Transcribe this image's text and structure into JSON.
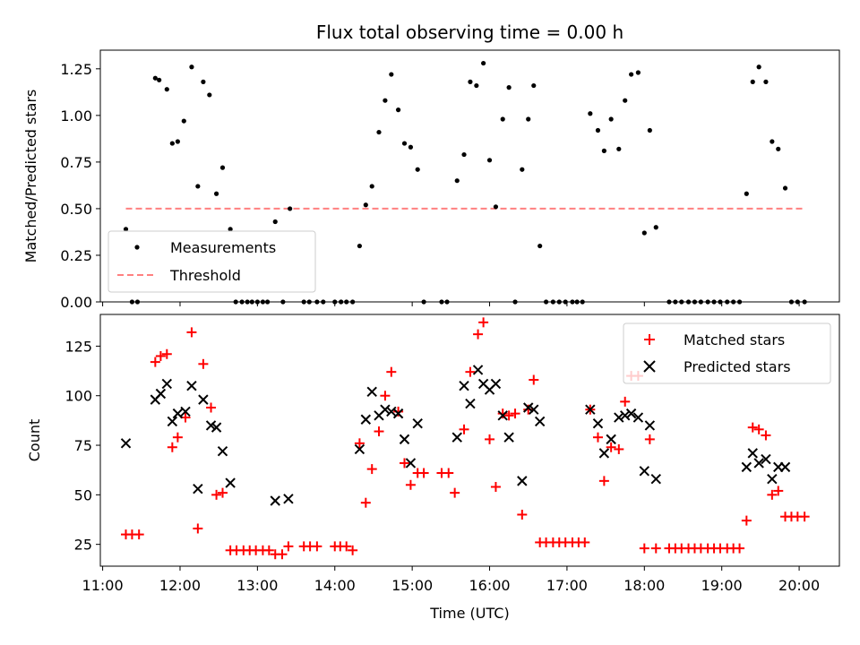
{
  "colors": {
    "measurement": "#000000",
    "threshold": "#ff8080",
    "matched": "#ff0000",
    "predicted": "#000000"
  },
  "chart_data": [
    {
      "type": "scatter",
      "title": "Flux total observing time = 0.00 h",
      "xlabel": "",
      "ylabel": "Matched/Predicted stars",
      "x_unit": "hours UTC",
      "xlim": [
        10.97,
        20.52
      ],
      "ylim": [
        0,
        1.35
      ],
      "yticks": [
        "0.00",
        "0.25",
        "0.50",
        "0.75",
        "1.00",
        "1.25"
      ],
      "legend": {
        "placement": "lower-left",
        "entries": [
          "Measurements",
          "Threshold"
        ]
      },
      "threshold": {
        "name": "Threshold",
        "y": 0.5,
        "x_start": 11.3,
        "x_end": 20.07,
        "style": "dashed"
      },
      "series": [
        {
          "name": "Measurements",
          "marker": "dot",
          "points": [
            [
              11.3,
              0.39
            ],
            [
              11.38,
              0.0
            ],
            [
              11.45,
              0.0
            ],
            [
              11.68,
              1.2
            ],
            [
              11.73,
              1.19
            ],
            [
              11.83,
              1.14
            ],
            [
              11.9,
              0.85
            ],
            [
              11.97,
              0.86
            ],
            [
              12.05,
              0.97
            ],
            [
              12.15,
              1.26
            ],
            [
              12.23,
              0.62
            ],
            [
              12.3,
              1.18
            ],
            [
              12.38,
              1.11
            ],
            [
              12.47,
              0.58
            ],
            [
              12.55,
              0.72
            ],
            [
              12.65,
              0.39
            ],
            [
              12.72,
              0.0
            ],
            [
              12.8,
              0.0
            ],
            [
              12.87,
              0.0
            ],
            [
              12.93,
              0.0
            ],
            [
              13.0,
              0.0
            ],
            [
              13.07,
              0.0
            ],
            [
              13.13,
              0.0
            ],
            [
              13.23,
              0.43
            ],
            [
              13.33,
              0.0
            ],
            [
              13.42,
              0.5
            ],
            [
              13.6,
              0.0
            ],
            [
              13.67,
              0.0
            ],
            [
              13.77,
              0.0
            ],
            [
              13.85,
              0.0
            ],
            [
              14.0,
              0.0
            ],
            [
              14.08,
              0.0
            ],
            [
              14.15,
              0.0
            ],
            [
              14.23,
              0.0
            ],
            [
              14.32,
              0.3
            ],
            [
              14.4,
              0.52
            ],
            [
              14.48,
              0.62
            ],
            [
              14.57,
              0.91
            ],
            [
              14.65,
              1.08
            ],
            [
              14.73,
              1.22
            ],
            [
              14.82,
              1.03
            ],
            [
              14.9,
              0.85
            ],
            [
              14.98,
              0.83
            ],
            [
              15.07,
              0.71
            ],
            [
              15.15,
              0.0
            ],
            [
              15.38,
              0.0
            ],
            [
              15.45,
              0.0
            ],
            [
              15.58,
              0.65
            ],
            [
              15.67,
              0.79
            ],
            [
              15.75,
              1.18
            ],
            [
              15.83,
              1.16
            ],
            [
              15.92,
              1.28
            ],
            [
              16.0,
              0.76
            ],
            [
              16.08,
              0.51
            ],
            [
              16.17,
              0.98
            ],
            [
              16.25,
              1.15
            ],
            [
              16.33,
              0.0
            ],
            [
              16.42,
              0.71
            ],
            [
              16.5,
              0.98
            ],
            [
              16.57,
              1.16
            ],
            [
              16.65,
              0.3
            ],
            [
              16.73,
              0.0
            ],
            [
              16.82,
              0.0
            ],
            [
              16.9,
              0.0
            ],
            [
              16.98,
              0.0
            ],
            [
              17.07,
              0.0
            ],
            [
              17.13,
              0.0
            ],
            [
              17.2,
              0.0
            ],
            [
              17.3,
              1.01
            ],
            [
              17.4,
              0.92
            ],
            [
              17.48,
              0.81
            ],
            [
              17.57,
              0.98
            ],
            [
              17.67,
              0.82
            ],
            [
              17.75,
              1.08
            ],
            [
              17.83,
              1.22
            ],
            [
              17.92,
              1.23
            ],
            [
              18.0,
              0.37
            ],
            [
              18.07,
              0.92
            ],
            [
              18.15,
              0.4
            ],
            [
              18.32,
              0.0
            ],
            [
              18.4,
              0.0
            ],
            [
              18.48,
              0.0
            ],
            [
              18.57,
              0.0
            ],
            [
              18.65,
              0.0
            ],
            [
              18.73,
              0.0
            ],
            [
              18.82,
              0.0
            ],
            [
              18.9,
              0.0
            ],
            [
              18.98,
              0.0
            ],
            [
              19.07,
              0.0
            ],
            [
              19.15,
              0.0
            ],
            [
              19.23,
              0.0
            ],
            [
              19.32,
              0.58
            ],
            [
              19.4,
              1.18
            ],
            [
              19.48,
              1.26
            ],
            [
              19.57,
              1.18
            ],
            [
              19.65,
              0.86
            ],
            [
              19.73,
              0.82
            ],
            [
              19.82,
              0.61
            ],
            [
              19.9,
              0.0
            ],
            [
              19.98,
              0.0
            ],
            [
              20.07,
              0.0
            ]
          ]
        }
      ]
    },
    {
      "type": "scatter",
      "title": "",
      "xlabel": "Time (UTC)",
      "ylabel": "Count",
      "x_unit": "hours UTC",
      "xlim": [
        10.97,
        20.52
      ],
      "ylim": [
        14,
        141
      ],
      "yticks": [
        "25",
        "50",
        "75",
        "100",
        "125"
      ],
      "xticks": [
        "11:00",
        "12:00",
        "13:00",
        "14:00",
        "15:00",
        "16:00",
        "17:00",
        "18:00",
        "19:00",
        "20:00"
      ],
      "legend": {
        "placement": "upper-right",
        "entries": [
          "Matched stars",
          "Predicted stars"
        ]
      },
      "series": [
        {
          "name": "Matched stars",
          "marker": "plus",
          "points": [
            [
              11.3,
              30
            ],
            [
              11.38,
              30
            ],
            [
              11.47,
              30
            ],
            [
              11.68,
              117
            ],
            [
              11.75,
              120
            ],
            [
              11.83,
              121
            ],
            [
              11.9,
              74
            ],
            [
              11.97,
              79
            ],
            [
              12.07,
              89
            ],
            [
              12.15,
              132
            ],
            [
              12.23,
              33
            ],
            [
              12.3,
              116
            ],
            [
              12.4,
              94
            ],
            [
              12.47,
              50
            ],
            [
              12.55,
              51
            ],
            [
              12.65,
              22
            ],
            [
              12.73,
              22
            ],
            [
              12.82,
              22
            ],
            [
              12.9,
              22
            ],
            [
              12.98,
              22
            ],
            [
              13.07,
              22
            ],
            [
              13.15,
              22
            ],
            [
              13.23,
              20
            ],
            [
              13.32,
              20
            ],
            [
              13.4,
              24
            ],
            [
              13.6,
              24
            ],
            [
              13.68,
              24
            ],
            [
              13.77,
              24
            ],
            [
              14.0,
              24
            ],
            [
              14.07,
              24
            ],
            [
              14.15,
              24
            ],
            [
              14.23,
              22
            ],
            [
              14.32,
              76
            ],
            [
              14.4,
              46
            ],
            [
              14.48,
              63
            ],
            [
              14.57,
              82
            ],
            [
              14.65,
              100
            ],
            [
              14.73,
              112
            ],
            [
              14.82,
              92
            ],
            [
              14.9,
              66
            ],
            [
              14.98,
              55
            ],
            [
              15.07,
              61
            ],
            [
              15.15,
              61
            ],
            [
              15.38,
              61
            ],
            [
              15.47,
              61
            ],
            [
              15.55,
              51
            ],
            [
              15.67,
              83
            ],
            [
              15.75,
              112
            ],
            [
              15.85,
              131
            ],
            [
              15.92,
              137
            ],
            [
              16.0,
              78
            ],
            [
              16.08,
              54
            ],
            [
              16.17,
              91
            ],
            [
              16.25,
              90
            ],
            [
              16.33,
              91
            ],
            [
              16.42,
              40
            ],
            [
              16.5,
              93
            ],
            [
              16.57,
              108
            ],
            [
              16.65,
              26
            ],
            [
              16.73,
              26
            ],
            [
              16.82,
              26
            ],
            [
              16.9,
              26
            ],
            [
              16.98,
              26
            ],
            [
              17.07,
              26
            ],
            [
              17.15,
              26
            ],
            [
              17.23,
              26
            ],
            [
              17.3,
              93
            ],
            [
              17.4,
              79
            ],
            [
              17.48,
              57
            ],
            [
              17.57,
              74
            ],
            [
              17.67,
              73
            ],
            [
              17.75,
              97
            ],
            [
              17.83,
              110
            ],
            [
              17.92,
              110
            ],
            [
              18.0,
              23
            ],
            [
              18.07,
              78
            ],
            [
              18.15,
              23
            ],
            [
              18.32,
              23
            ],
            [
              18.4,
              23
            ],
            [
              18.48,
              23
            ],
            [
              18.57,
              23
            ],
            [
              18.65,
              23
            ],
            [
              18.73,
              23
            ],
            [
              18.82,
              23
            ],
            [
              18.9,
              23
            ],
            [
              18.98,
              23
            ],
            [
              19.07,
              23
            ],
            [
              19.15,
              23
            ],
            [
              19.23,
              23
            ],
            [
              19.32,
              37
            ],
            [
              19.4,
              84
            ],
            [
              19.48,
              83
            ],
            [
              19.57,
              80
            ],
            [
              19.65,
              50
            ],
            [
              19.73,
              52
            ],
            [
              19.82,
              39
            ],
            [
              19.9,
              39
            ],
            [
              19.98,
              39
            ],
            [
              20.07,
              39
            ]
          ]
        },
        {
          "name": "Predicted stars",
          "marker": "x",
          "points": [
            [
              11.3,
              76
            ],
            [
              11.68,
              98
            ],
            [
              11.75,
              101
            ],
            [
              11.83,
              106
            ],
            [
              11.9,
              87
            ],
            [
              11.97,
              91
            ],
            [
              12.07,
              92
            ],
            [
              12.15,
              105
            ],
            [
              12.23,
              53
            ],
            [
              12.3,
              98
            ],
            [
              12.4,
              85
            ],
            [
              12.47,
              84
            ],
            [
              12.55,
              72
            ],
            [
              12.65,
              56
            ],
            [
              13.23,
              47
            ],
            [
              13.4,
              48
            ],
            [
              14.32,
              73
            ],
            [
              14.4,
              88
            ],
            [
              14.48,
              102
            ],
            [
              14.57,
              90
            ],
            [
              14.65,
              93
            ],
            [
              14.73,
              92
            ],
            [
              14.82,
              91
            ],
            [
              14.9,
              78
            ],
            [
              14.98,
              66
            ],
            [
              15.07,
              86
            ],
            [
              15.58,
              79
            ],
            [
              15.67,
              105
            ],
            [
              15.75,
              96
            ],
            [
              15.85,
              113
            ],
            [
              15.92,
              106
            ],
            [
              16.0,
              103
            ],
            [
              16.08,
              106
            ],
            [
              16.17,
              90
            ],
            [
              16.25,
              79
            ],
            [
              16.42,
              57
            ],
            [
              16.5,
              94
            ],
            [
              16.57,
              93
            ],
            [
              16.65,
              87
            ],
            [
              17.3,
              93
            ],
            [
              17.4,
              86
            ],
            [
              17.48,
              71
            ],
            [
              17.57,
              78
            ],
            [
              17.67,
              89
            ],
            [
              17.75,
              90
            ],
            [
              17.83,
              91
            ],
            [
              17.92,
              89
            ],
            [
              18.0,
              62
            ],
            [
              18.07,
              85
            ],
            [
              18.15,
              58
            ],
            [
              19.32,
              64
            ],
            [
              19.4,
              71
            ],
            [
              19.48,
              66
            ],
            [
              19.57,
              68
            ],
            [
              19.65,
              58
            ],
            [
              19.73,
              64
            ],
            [
              19.82,
              64
            ]
          ]
        }
      ]
    }
  ]
}
